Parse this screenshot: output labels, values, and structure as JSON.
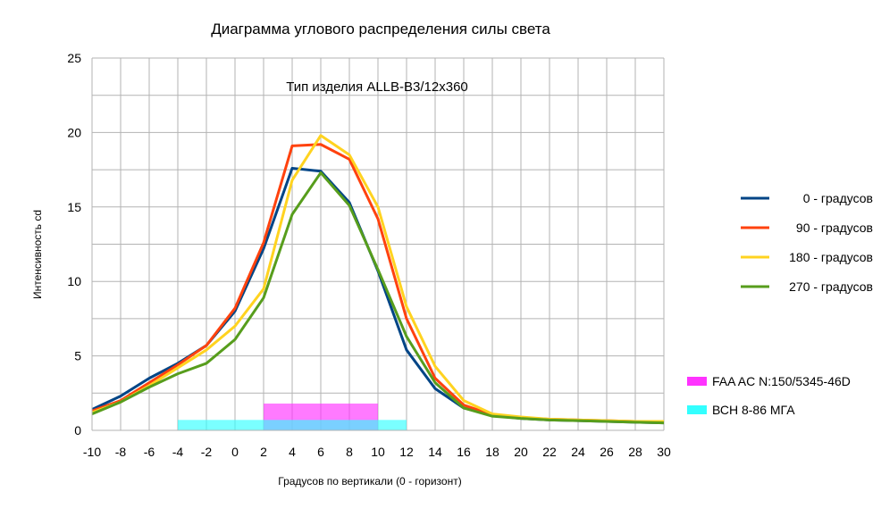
{
  "chart_data": {
    "type": "line",
    "title": "Диаграмма углового распределения силы света",
    "subtitle": "Тип изделия ALLB-B3/12x360",
    "xlabel": "Градусов по вертикали (0 - горизонт)",
    "ylabel": "Интенсивность cd",
    "xlim": [
      -10,
      30
    ],
    "ylim": [
      0,
      25
    ],
    "grid": true,
    "legend_position": "right",
    "x": [
      -10,
      -8,
      -6,
      -4,
      -2,
      0,
      2,
      4,
      6,
      8,
      10,
      12,
      14,
      16,
      18,
      20,
      22,
      24,
      26,
      28,
      30
    ],
    "x_ticks": [
      "-10",
      "-8",
      "-6",
      "-4",
      "-2",
      "0",
      "2",
      "4",
      "6",
      "8",
      "10",
      "12",
      "14",
      "16",
      "18",
      "20",
      "22",
      "24",
      "26",
      "28",
      "30"
    ],
    "y_ticks": [
      "0",
      "5",
      "10",
      "15",
      "20",
      "25"
    ],
    "series": [
      {
        "name": "0 - градусов",
        "color": "#004586",
        "values": [
          1.4,
          2.3,
          3.5,
          4.5,
          5.7,
          8.0,
          12.2,
          17.6,
          17.4,
          15.3,
          10.7,
          5.4,
          2.8,
          1.5,
          1.0,
          0.8,
          0.7,
          0.65,
          0.6,
          0.55,
          0.5
        ]
      },
      {
        "name": "90 - градусов",
        "color": "#ff420e",
        "values": [
          1.3,
          2.0,
          3.2,
          4.4,
          5.7,
          8.2,
          12.6,
          19.1,
          19.2,
          18.2,
          14.2,
          7.5,
          3.5,
          1.7,
          1.05,
          0.85,
          0.75,
          0.7,
          0.65,
          0.6,
          0.55
        ]
      },
      {
        "name": "180 - градусов",
        "color": "#ffd320",
        "values": [
          1.2,
          1.9,
          3.0,
          4.2,
          5.4,
          7.0,
          9.5,
          16.8,
          19.8,
          18.5,
          15.0,
          8.3,
          4.3,
          2.0,
          1.1,
          0.9,
          0.75,
          0.7,
          0.65,
          0.6,
          0.6
        ]
      },
      {
        "name": "270 - градусов",
        "color": "#579d1c",
        "values": [
          1.1,
          1.9,
          2.9,
          3.8,
          4.5,
          6.1,
          8.9,
          14.5,
          17.3,
          15.1,
          10.8,
          6.3,
          3.2,
          1.5,
          0.95,
          0.8,
          0.7,
          0.65,
          0.6,
          0.55,
          0.5
        ]
      }
    ],
    "bands": [
      {
        "name": "FAA AC N:150/5345-46D",
        "color": "#ff33ff",
        "opacity": 0.65,
        "x_range": [
          2,
          10
        ],
        "y_range": [
          0,
          1.8
        ]
      },
      {
        "name": "ВСН 8-86 МГА",
        "color": "#33ffff",
        "opacity": 0.65,
        "x_range": [
          -4,
          12
        ],
        "y_range": [
          0,
          0.7
        ]
      }
    ]
  }
}
